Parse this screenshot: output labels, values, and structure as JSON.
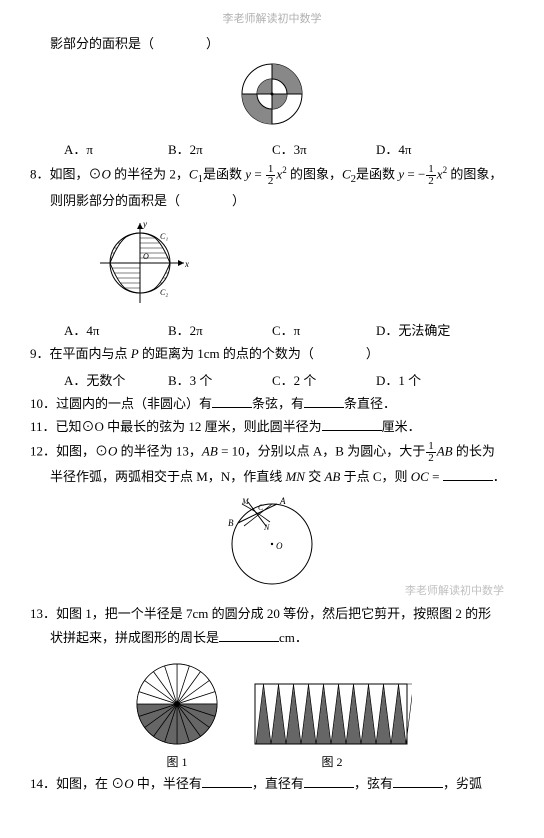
{
  "header": "李老师解读初中数学",
  "watermark": "李老师解读初中数学",
  "q7_stem": "影部分的面积是（　　　　）",
  "q7_opts": {
    "a": "A．π",
    "b": "B．2π",
    "c": "C．3π",
    "d": "D．4π"
  },
  "q8_p1": "8．如图，⊙",
  "q8_O": "O",
  "q8_p2": " 的半径为 2，",
  "q8_C1": "C",
  "q8_sub1": "1",
  "q8_p3": "是函数 ",
  "q8_y": "y",
  "q8_eq": " = ",
  "q8_x": "x",
  "q8_p4": " 的图象，",
  "q8_C2": "C",
  "q8_sub2": "2",
  "q8_p5": "是函数 ",
  "q8_neg": "−",
  "q8_p6": " 的图象，",
  "q8_l2": "则阴影部分的面积是（　　　　）",
  "q8_opts": {
    "a": "A．4π",
    "b": "B．2π",
    "c": "C．π",
    "d": "D．无法确定"
  },
  "q9_p1": "9．在平面内与点 ",
  "q9_P": "P",
  "q9_p2": " 的距离为 1cm 的点的个数为（　　　　）",
  "q9_opts": {
    "a": "A．无数个",
    "b": "B．3 个",
    "c": "C．2 个",
    "d": "D．1 个"
  },
  "q10_p1": "10．过圆内的一点（非圆心）有",
  "q10_p2": "条弦，有",
  "q10_p3": "条直径．",
  "q11_p1": "11．已知⊙O 中最长的弦为 12 厘米，则此圆半径为",
  "q11_p2": "厘米．",
  "q12_p1": "12．如图，⊙",
  "q12_O": "O",
  "q12_p2": " 的半径为 13，",
  "q12_AB": "AB",
  "q12_eq10": " = 10，分别以点 A，B 为圆心，大于",
  "q12_AB2": "AB",
  "q12_p3": " 的长为",
  "q12_l2a": "半径作弧，两弧相交于点 M，N，作直线 ",
  "q12_MN": "MN",
  "q12_l2b": " 交 ",
  "q12_AB3": "AB",
  "q12_l2c": " 于点 C，则 ",
  "q12_OC": "OC",
  "q12_l2d": " = ",
  "q12_period": "．",
  "q13_p1": "13．如图 1，把一个半径是 7cm 的圆分成 20 等份，然后把它剪开，按照图 2 的形",
  "q13_p2": "状拼起来，拼成图形的周长是",
  "q13_p3": "cm．",
  "fig1_lbl": "图 1",
  "fig2_lbl": "图 2",
  "q14_p1": "14．如图，在 ⊙",
  "q14_O": "O",
  "q14_p2": " 中，半径有",
  "q14_p3": "，直径有",
  "q14_p4": "，弦有",
  "q14_p5": "，劣弧",
  "frac": {
    "n1": "1",
    "d2": "2"
  },
  "fig7": {
    "outer_r": 30,
    "inner_r": 15,
    "colors": {
      "gray": "#888888",
      "white": "#ffffff",
      "black": "#000000"
    }
  },
  "fig8": {
    "r": 30,
    "gray": "#888888"
  },
  "fig12": {
    "r": 40
  },
  "fig13_1": {
    "r": 40,
    "slices": 20,
    "gray": "#666666"
  },
  "fig13_2": {
    "cones": 10,
    "w": 150,
    "h": 60,
    "gray": "#666666"
  }
}
